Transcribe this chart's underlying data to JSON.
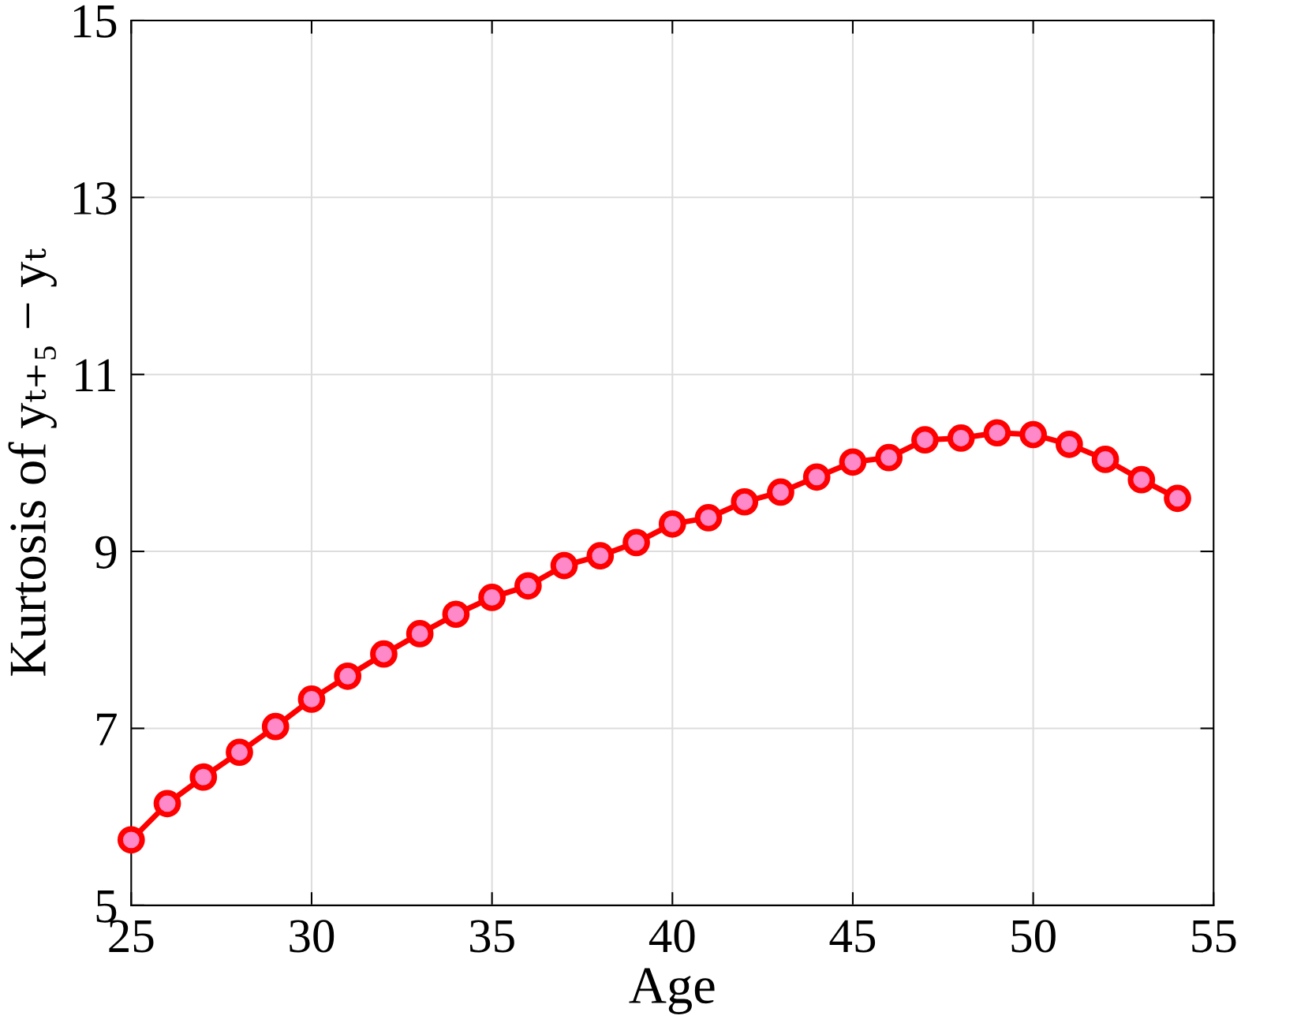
{
  "chart_data": {
    "type": "line",
    "xlabel": "Age",
    "ylabel": "Kurtosis of yₜ₊₅ − yₜ",
    "x": [
      25,
      26,
      27,
      28,
      29,
      30,
      31,
      32,
      33,
      34,
      35,
      36,
      37,
      38,
      39,
      40,
      41,
      42,
      43,
      44,
      45,
      46,
      47,
      48,
      49,
      50,
      51,
      52,
      53,
      54
    ],
    "series": [
      {
        "color": "#ff0000",
        "values": [
          5.74,
          6.15,
          6.45,
          6.73,
          7.02,
          7.33,
          7.59,
          7.84,
          8.07,
          8.29,
          8.48,
          8.61,
          8.84,
          8.95,
          9.1,
          9.31,
          9.38,
          9.56,
          9.67,
          9.84,
          10.01,
          10.06,
          10.26,
          10.28,
          10.34,
          10.32,
          10.21,
          10.04,
          9.81,
          9.6
        ]
      }
    ],
    "marker": "circle",
    "line_style": "solid",
    "grid": true,
    "xlim": [
      25,
      55
    ],
    "xticks": [
      25,
      30,
      35,
      40,
      45,
      50,
      55
    ],
    "ylim": [
      5,
      15
    ],
    "yticks": [
      5,
      7,
      9,
      11,
      13,
      15
    ]
  }
}
